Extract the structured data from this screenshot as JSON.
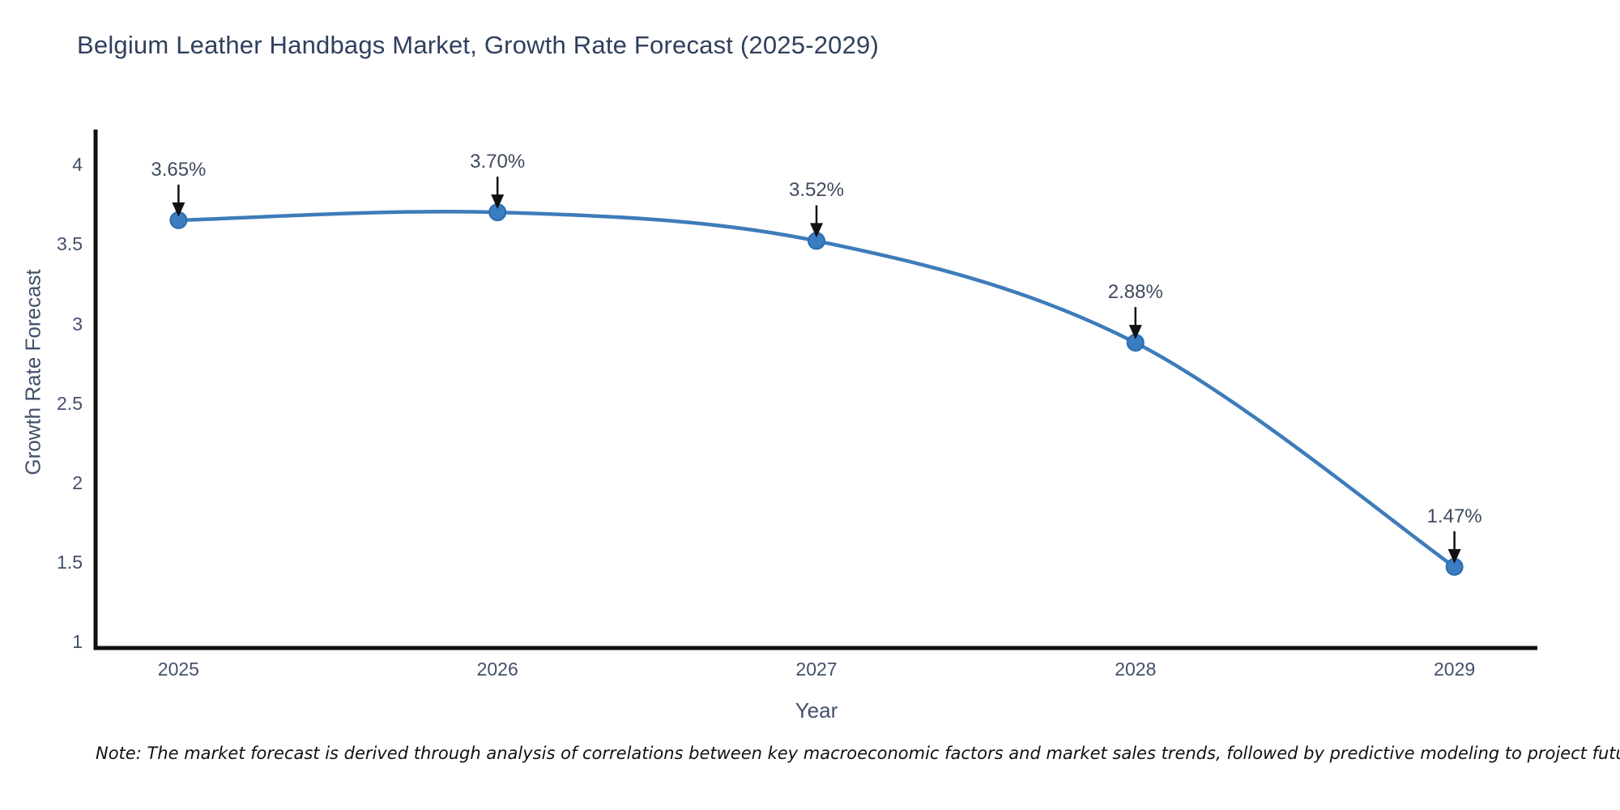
{
  "title": "Belgium Leather Handbags Market, Growth Rate Forecast (2025-2029)",
  "note": "Note: The market forecast is derived through analysis of correlations between key macroeconomic factors and market sales trends, followed by predictive modeling to project future sales",
  "chart_data": {
    "type": "line",
    "title": "Belgium Leather Handbags Market, Growth Rate Forecast (2025-2029)",
    "xlabel": "Year",
    "ylabel": "Growth Rate Forecast",
    "x": [
      2025,
      2026,
      2027,
      2028,
      2029
    ],
    "values": [
      3.65,
      3.7,
      3.52,
      2.88,
      1.47
    ],
    "point_labels": [
      "3.65%",
      "3.70%",
      "3.52%",
      "2.88%",
      "1.47%"
    ],
    "x_tick_labels": [
      "2025",
      "2026",
      "2027",
      "2028",
      "2029"
    ],
    "y_ticks": [
      1,
      1.5,
      2,
      2.5,
      3,
      3.5,
      4
    ],
    "y_tick_labels": [
      "1",
      "1.5",
      "2",
      "2.5",
      "3",
      "3.5",
      "4"
    ],
    "xlim": [
      2024.74,
      2029.26
    ],
    "ylim": [
      0.96,
      4.22
    ],
    "grid": false,
    "legend": "none",
    "line_shape": "spline",
    "colors": {
      "line": "#3e7cba",
      "marker_fill": "#3b7dc1",
      "marker_edge": "#2d6cae",
      "axis": "#111111",
      "tick_text": "#42506b",
      "annotation_text": "#3f4a5f",
      "title_text": "#2f3f5c",
      "arrow": "#111111"
    }
  }
}
